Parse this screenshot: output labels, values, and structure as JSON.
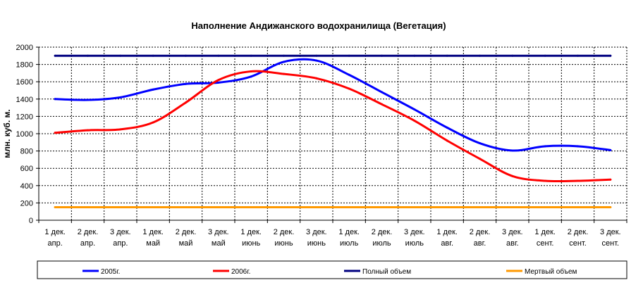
{
  "chart_data": {
    "type": "line",
    "title": "Наполнение Андижанского водохранилища (Вегетация)",
    "xlabel": "",
    "ylabel": "млн. куб. м.",
    "ylim": [
      0,
      2000
    ],
    "yticks": [
      0,
      200,
      400,
      600,
      800,
      1000,
      1200,
      1400,
      1600,
      1800,
      2000
    ],
    "grid": true,
    "legend_position": "bottom",
    "categories": [
      [
        "1 дек.",
        "апр."
      ],
      [
        "2 дек.",
        "апр."
      ],
      [
        "3 дек.",
        "апр."
      ],
      [
        "1 дек.",
        "май"
      ],
      [
        "2 дек.",
        "май"
      ],
      [
        "3 дек.",
        "май"
      ],
      [
        "1 дек.",
        "июнь"
      ],
      [
        "2 дек.",
        "июнь"
      ],
      [
        "3 дек.",
        "июнь"
      ],
      [
        "1 дек.",
        "июль"
      ],
      [
        "2 дек.",
        "июль"
      ],
      [
        "3 дек.",
        "июль"
      ],
      [
        "1 дек.",
        "авг."
      ],
      [
        "2 дек.",
        "авг."
      ],
      [
        "3 дек.",
        "авг."
      ],
      [
        "1 дек.",
        "сент."
      ],
      [
        "2 дек.",
        "сент."
      ],
      [
        "3 дек.",
        "сент."
      ]
    ],
    "series": [
      {
        "name": "2005г.",
        "color": "#0000ff",
        "values": [
          1400,
          1390,
          1420,
          1510,
          1575,
          1590,
          1660,
          1830,
          1845,
          1680,
          1480,
          1280,
          1070,
          890,
          805,
          855,
          855,
          810
        ]
      },
      {
        "name": "2006г.",
        "color": "#ff0000",
        "values": [
          1010,
          1040,
          1050,
          1130,
          1360,
          1620,
          1720,
          1690,
          1640,
          1520,
          1340,
          1150,
          920,
          710,
          510,
          455,
          455,
          470
        ]
      },
      {
        "name": "Полный объем",
        "color": "#000080",
        "values": [
          1900,
          1900,
          1900,
          1900,
          1900,
          1900,
          1900,
          1900,
          1900,
          1900,
          1900,
          1900,
          1900,
          1900,
          1900,
          1900,
          1900,
          1900
        ]
      },
      {
        "name": "Мертвый объем",
        "color": "#ff9900",
        "values": [
          150,
          150,
          150,
          150,
          150,
          150,
          150,
          150,
          150,
          150,
          150,
          150,
          150,
          150,
          150,
          150,
          150,
          150
        ]
      }
    ]
  }
}
